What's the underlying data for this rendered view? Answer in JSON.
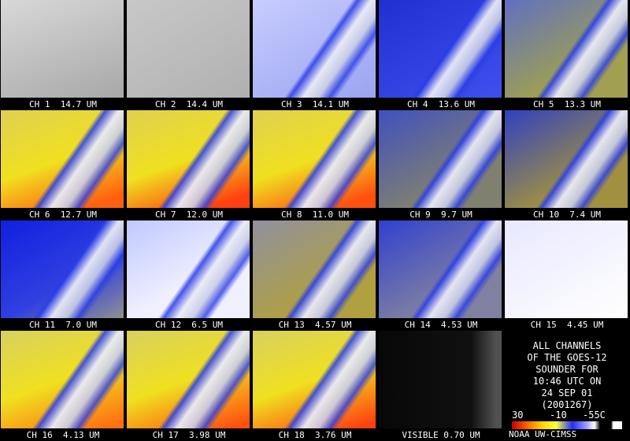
{
  "panels": [
    {
      "label": "CH 1  14.7 UM"
    },
    {
      "label": "CH 2  14.4 UM"
    },
    {
      "label": "CH 3  14.1 UM"
    },
    {
      "label": "CH 4  13.6 UM"
    },
    {
      "label": "CH 5  13.3 UM"
    },
    {
      "label": "CH 6  12.7 UM"
    },
    {
      "label": "CH 7  12.0 UM"
    },
    {
      "label": "CH 8  11.0 UM"
    },
    {
      "label": "CH 9  9.7 UM"
    },
    {
      "label": "CH 10  7.4 UM"
    },
    {
      "label": "CH 11  7.0 UM"
    },
    {
      "label": "CH 12  6.5 UM"
    },
    {
      "label": "CH 13  4.57 UM"
    },
    {
      "label": "CH 14  4.53 UM"
    },
    {
      "label": "CH 15  4.45 UM"
    },
    {
      "label": "CH 16  4.13 UM"
    },
    {
      "label": "CH 17  3.98 UM"
    },
    {
      "label": "CH 18  3.76 UM"
    },
    {
      "label": "VISIBLE 0.70 UM"
    }
  ],
  "info": {
    "lines": [
      "ALL CHANNELS",
      "OF THE GOES-12",
      "SOUNDER FOR",
      "10:46 UTC ON",
      "24 SEP 01",
      "(2001267)"
    ]
  },
  "colorbar": {
    "labels": [
      "30",
      "-10",
      "-55C"
    ]
  },
  "credit": "NOAA UW-CIMSS"
}
